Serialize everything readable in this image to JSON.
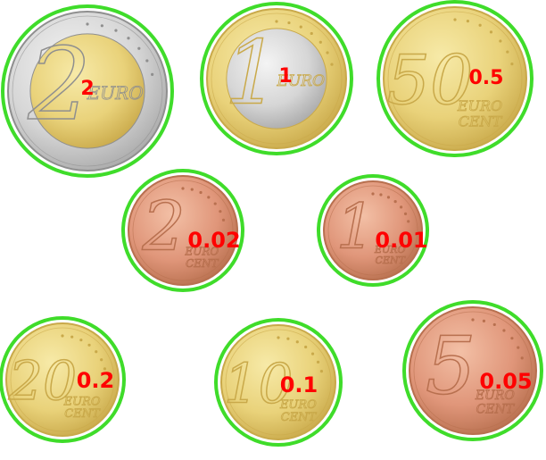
{
  "colors": {
    "highlight": "#3fdc2a",
    "label": "#ff0000",
    "gold": "#e9d27a",
    "gold_dark": "#c9a94a",
    "silver": "#d6d6d6",
    "copper": "#e0967a",
    "copper_dark": "#b8704f"
  },
  "coins": [
    {
      "id": "two-euro",
      "face_number": "2",
      "face_word": "EURO",
      "style": "bimetal-silver-outer",
      "value_label": "2"
    },
    {
      "id": "one-euro",
      "face_number": "1",
      "face_word": "EURO",
      "style": "bimetal-gold-outer",
      "value_label": "1"
    },
    {
      "id": "fifty-cent",
      "face_number": "50",
      "face_word": "EURO CENT",
      "style": "gold",
      "value_label": "0.5"
    },
    {
      "id": "two-cent",
      "face_number": "2",
      "face_word": "EURO CENT",
      "style": "copper",
      "value_label": "0.02"
    },
    {
      "id": "one-cent",
      "face_number": "1",
      "face_word": "EURO CENT",
      "style": "copper",
      "value_label": "0.01"
    },
    {
      "id": "twenty-cent",
      "face_number": "20",
      "face_word": "EURO CENT",
      "style": "gold",
      "value_label": "0.2"
    },
    {
      "id": "ten-cent",
      "face_number": "10",
      "face_word": "EURO CENT",
      "style": "gold",
      "value_label": "0.1"
    },
    {
      "id": "five-cent",
      "face_number": "5",
      "face_word": "EURO CENT",
      "style": "copper",
      "value_label": "0.05"
    }
  ]
}
